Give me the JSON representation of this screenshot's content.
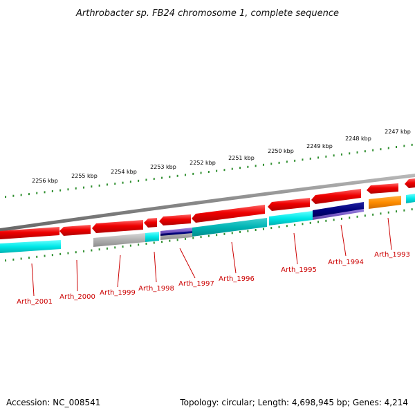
{
  "title": "Arthrobacter sp. FB24 chromosome 1, complete sequence",
  "footer": {
    "accession": "Accession: NC_008541",
    "summary": "Topology: circular; Length: 4,698,945 bp; Genes: 4,214"
  },
  "kbp_labels": [
    "2256 kbp",
    "2255 kbp",
    "2254 kbp",
    "2253 kbp",
    "2252 kbp",
    "2251 kbp",
    "2250 kbp",
    "2249 kbp",
    "2248 kbp",
    "2247 kbp"
  ],
  "gene_labels": [
    "Arth_2001",
    "Arth_2000",
    "Arth_1999",
    "Arth_1998",
    "Arth_1997",
    "Arth_1996",
    "Arth_1995",
    "Arth_1994",
    "Arth_1993"
  ],
  "colors": {
    "forward_gene": "#ee0000",
    "backbone": "#888888",
    "tick": "#2f8f2f",
    "label": "#cc0000",
    "cyan": "#00f0f0",
    "teal": "#00c0c0",
    "gray_feature": "#b0b0b0",
    "navy": "#00007a",
    "purple": "#7a5cc8",
    "orange": "#ff8c00"
  }
}
